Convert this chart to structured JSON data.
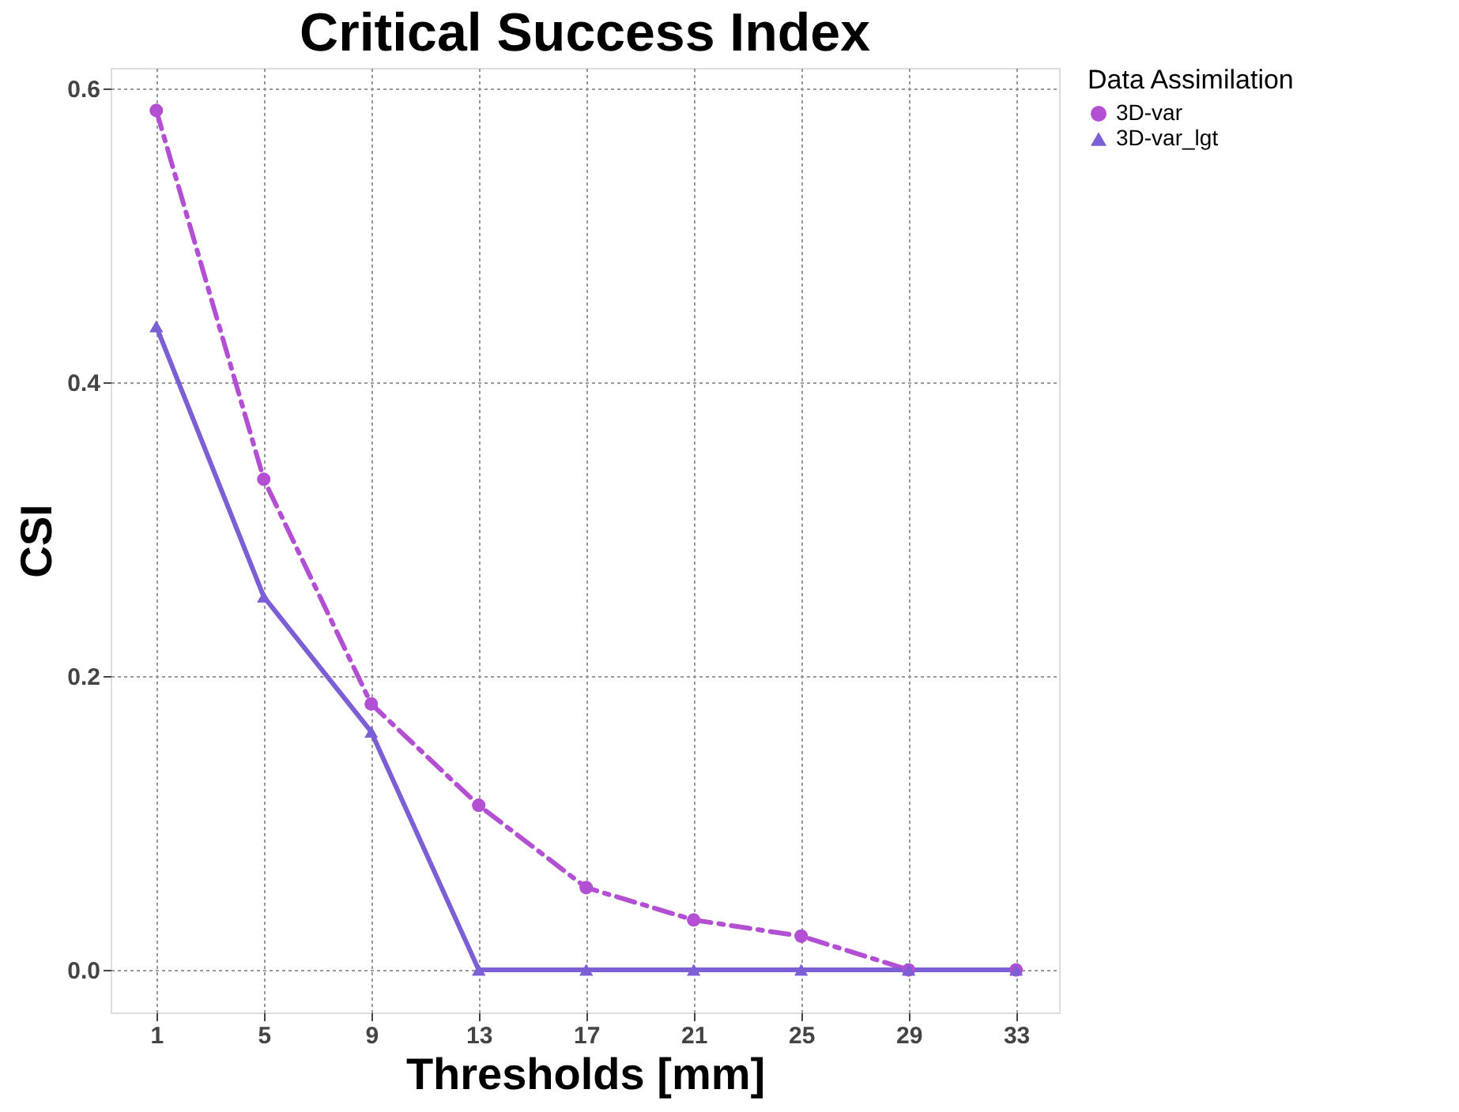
{
  "chart_data": {
    "type": "line",
    "title": "Critical Success Index",
    "xlabel": "Thresholds [mm]",
    "ylabel": "CSI",
    "legend_title": "Data Assimilation",
    "x": [
      1,
      5,
      9,
      13,
      17,
      21,
      25,
      29,
      33
    ],
    "series": [
      {
        "name": "3D-var",
        "color": "#b34fd3",
        "marker": "circle",
        "line_style": "dashed",
        "values": [
          0.585,
          0.334,
          0.181,
          0.112,
          0.056,
          0.034,
          0.023,
          0,
          0
        ]
      },
      {
        "name": "3D-var_lgt",
        "color": "#7c5fd5",
        "marker": "triangle",
        "line_style": "solid",
        "values": [
          0.438,
          0.254,
          0.162,
          0,
          0,
          0,
          0,
          0,
          0
        ]
      }
    ],
    "xlim": [
      -0.7,
      34.6
    ],
    "xticks": [
      1,
      5,
      9,
      13,
      17,
      21,
      25,
      29,
      33
    ],
    "ylim": [
      -0.029,
      0.614
    ],
    "yticks": [
      {
        "value": 0,
        "label": "0.0"
      },
      {
        "value": 0.2,
        "label": "0.2"
      },
      {
        "value": 0.4,
        "label": "0.4"
      },
      {
        "value": 0.6,
        "label": "0.6"
      }
    ],
    "grid": true,
    "legend": "right"
  }
}
